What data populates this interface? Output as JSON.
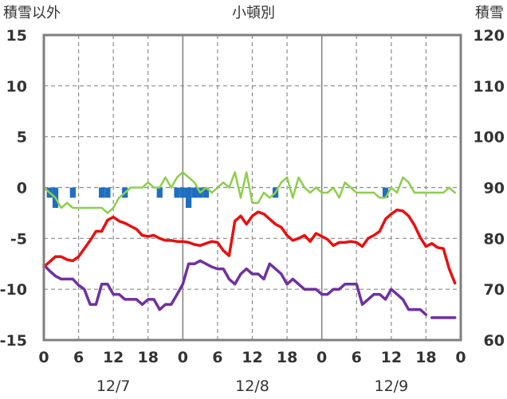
{
  "chart_data": {
    "type": "line",
    "title": "小頓別",
    "left_axis_label": "積雪以外",
    "right_axis_label": "積雪",
    "left_ylim": [
      -15,
      15
    ],
    "left_yticks": [
      "15",
      "10",
      "5",
      "0",
      "-5",
      "-10",
      "-15"
    ],
    "right_ylim": [
      60,
      120
    ],
    "right_yticks": [
      "120",
      "110",
      "100",
      "90",
      "80",
      "70",
      "60"
    ],
    "x_range_hours": [
      0,
      72
    ],
    "xtick_labels": [
      "0",
      "6",
      "12",
      "18",
      "0",
      "6",
      "12",
      "18",
      "0",
      "6",
      "12",
      "18",
      "0"
    ],
    "date_labels": [
      "12/7",
      "12/8",
      "12/9"
    ],
    "grid": "dashed every 6h, solid at day boundaries",
    "colors": {
      "precipitation": "#1f6fc0",
      "temperature": "#e81010",
      "dew_point": "#7030a0",
      "snow_depth": "#8ccf4a",
      "frame": "#7f7f7f"
    },
    "series": [
      {
        "key": "temperature",
        "axis": "left",
        "x": [
          0,
          1,
          2,
          3,
          4,
          5,
          6,
          7,
          8,
          9,
          10,
          11,
          12,
          13,
          14,
          15,
          16,
          17,
          18,
          19,
          20,
          21,
          22,
          23,
          24,
          25,
          26,
          27,
          28,
          29,
          30,
          31,
          32,
          33,
          34,
          35,
          36,
          37,
          38,
          39,
          40,
          41,
          42,
          43,
          44,
          45,
          46,
          47,
          48,
          49,
          50,
          51,
          52,
          53,
          54,
          55,
          56,
          57,
          58,
          59,
          60,
          61,
          62,
          63,
          64,
          65,
          66,
          67,
          68,
          69,
          70,
          71
        ],
        "values": [
          -7.8,
          -7.3,
          -6.8,
          -6.8,
          -7.1,
          -7.2,
          -6.8,
          -6.0,
          -5.2,
          -4.3,
          -4.3,
          -3.2,
          -2.9,
          -3.3,
          -3.5,
          -3.8,
          -4.1,
          -4.7,
          -4.8,
          -4.7,
          -5.0,
          -5.2,
          -5.2,
          -5.3,
          -5.3,
          -5.4,
          -5.6,
          -5.7,
          -5.5,
          -5.3,
          -5.4,
          -6.2,
          -6.7,
          -3.3,
          -2.8,
          -3.6,
          -2.8,
          -2.4,
          -2.6,
          -3.1,
          -3.6,
          -3.9,
          -4.7,
          -5.2,
          -5.0,
          -4.7,
          -5.3,
          -4.5,
          -4.8,
          -5.1,
          -5.7,
          -5.4,
          -5.4,
          -5.3,
          -5.4,
          -5.8,
          -5.0,
          -4.7,
          -4.3,
          -3.1,
          -2.6,
          -2.2,
          -2.3,
          -2.8,
          -3.7,
          -4.9,
          -5.8,
          -5.5,
          -5.9,
          -6.0,
          -8.0,
          -9.4
        ],
        "gaps": []
      },
      {
        "key": "dew_point",
        "axis": "left",
        "x": [
          0,
          1,
          2,
          3,
          4,
          5,
          6,
          7,
          8,
          9,
          10,
          11,
          12,
          13,
          14,
          15,
          16,
          17,
          18,
          19,
          20,
          21,
          22,
          23,
          24,
          25,
          26,
          27,
          28,
          29,
          30,
          31,
          32,
          33,
          34,
          35,
          36,
          37,
          38,
          39,
          40,
          41,
          42,
          43,
          44,
          45,
          46,
          47,
          48,
          49,
          50,
          51,
          52,
          53,
          54,
          55,
          56,
          57,
          58,
          59,
          60,
          61,
          62,
          63,
          64,
          65,
          66,
          67,
          68,
          69,
          70,
          71
        ],
        "values": [
          -7.6,
          -8.2,
          -8.7,
          -9.0,
          -9.0,
          -9.0,
          -9.6,
          -10.0,
          -11.5,
          -11.5,
          -9.5,
          -9.5,
          -10.5,
          -10.5,
          -11.0,
          -11.0,
          -11.0,
          -11.5,
          -11.0,
          -11.0,
          -12.0,
          -11.5,
          -11.5,
          -10.5,
          -9.5,
          -7.5,
          -7.5,
          -7.2,
          -7.5,
          -7.8,
          -8.0,
          -8.0,
          -9.0,
          -9.5,
          -8.5,
          -8.0,
          -8.5,
          -8.5,
          -9.0,
          -7.5,
          -8.0,
          -8.5,
          -9.5,
          -9.0,
          -9.5,
          -10.0,
          -10.0,
          -10.0,
          -10.5,
          -10.5,
          -10.0,
          -10.0,
          -9.5,
          -9.5,
          -9.5,
          -11.5,
          -11.0,
          -10.5,
          -10.5,
          -11.0,
          -10.0,
          -10.5,
          -11.0,
          -12.0,
          -12.0,
          -12.0,
          -12.5,
          -12.8,
          -12.8,
          -12.8,
          -12.8,
          -12.8
        ],
        "gaps": [
          [
            66,
            67
          ]
        ]
      },
      {
        "key": "snow_depth",
        "axis": "right",
        "x": [
          0,
          1,
          2,
          3,
          4,
          5,
          6,
          7,
          8,
          9,
          10,
          11,
          12,
          13,
          14,
          15,
          16,
          17,
          18,
          19,
          20,
          21,
          22,
          23,
          24,
          25,
          26,
          27,
          28,
          29,
          30,
          31,
          32,
          33,
          34,
          35,
          36,
          37,
          38,
          39,
          40,
          41,
          42,
          43,
          44,
          45,
          46,
          47,
          48,
          49,
          50,
          51,
          52,
          53,
          54,
          55,
          56,
          57,
          58,
          59,
          60,
          61,
          62,
          63,
          64,
          65,
          66,
          67,
          68,
          69,
          70,
          71
        ],
        "values": [
          90,
          89,
          88,
          86,
          87,
          86,
          86,
          86,
          86,
          86,
          86,
          85,
          86,
          88,
          89,
          90,
          90,
          90,
          91,
          90,
          90,
          92,
          90,
          92,
          93,
          92,
          91,
          89,
          90,
          89,
          90,
          91,
          90,
          93,
          88,
          93,
          87,
          87,
          89,
          88,
          89,
          91,
          92,
          88,
          92,
          90,
          89,
          90,
          89,
          89,
          90,
          88,
          91,
          90,
          89,
          89,
          89,
          89,
          88,
          88,
          90,
          89,
          92,
          91,
          89,
          89,
          89,
          89,
          89,
          89,
          90,
          89
        ],
        "gaps": []
      }
    ],
    "precipitation_bars": {
      "axis": "left",
      "baseline": 0,
      "x": [
        1,
        2,
        5,
        10,
        11,
        14,
        20,
        23,
        24,
        25,
        26,
        27,
        28,
        40,
        59
      ],
      "values": [
        -1.0,
        -2.0,
        -1.0,
        -1.0,
        -1.0,
        -1.0,
        -1.0,
        -1.0,
        -1.0,
        -2.0,
        -1.0,
        -1.0,
        -1.0,
        -1.0,
        -1.0
      ]
    }
  }
}
